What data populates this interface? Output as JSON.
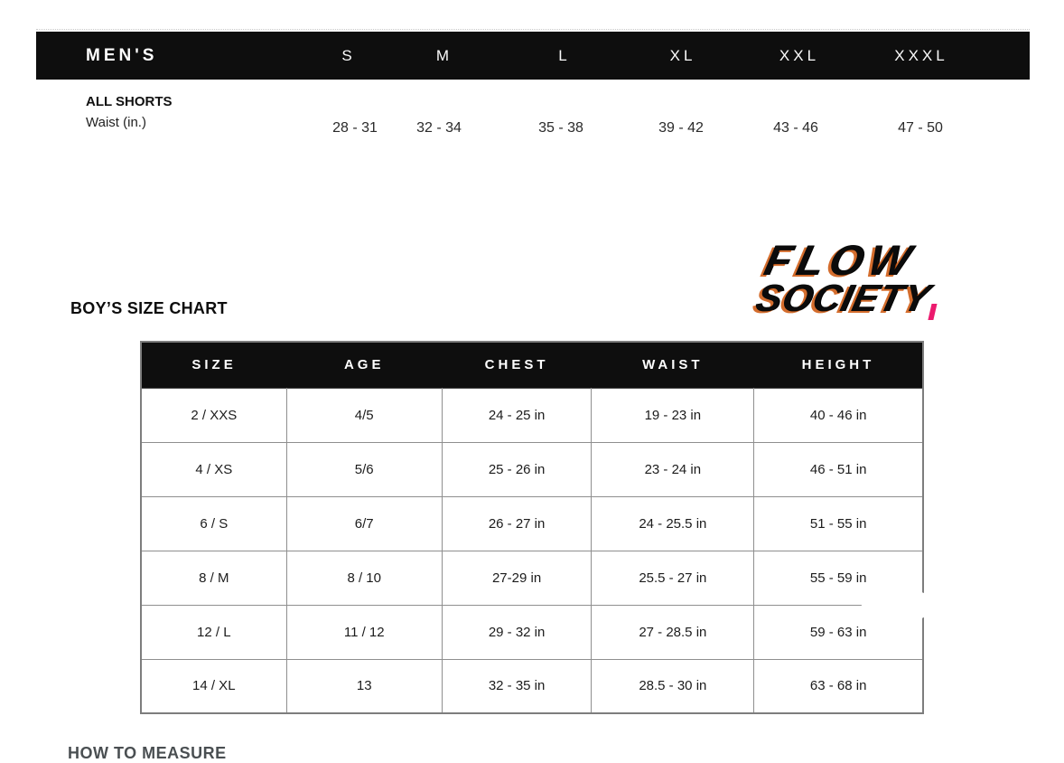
{
  "mens_bar": {
    "title": "MEN'S",
    "sizes": [
      "S",
      "M",
      "L",
      "XL",
      "XXL",
      "XXXL"
    ]
  },
  "mens_shorts": {
    "label": "ALL SHORTS",
    "sublabel": "Waist (in.)",
    "values": [
      "28 - 31",
      "32 - 34",
      "35 - 38",
      "39 - 42",
      "43 - 46",
      "47 - 50"
    ]
  },
  "logo": {
    "line1": "FLOW",
    "line2": "SOCIETY"
  },
  "boys_chart": {
    "title": "BOY’S SIZE CHART",
    "columns": [
      "SIZE",
      "AGE",
      "CHEST",
      "WAIST",
      "HEIGHT"
    ],
    "rows": [
      {
        "size": "2 / XXS",
        "age": "4/5",
        "chest": "24 - 25 in",
        "waist": "19 - 23 in",
        "height": "40 - 46 in"
      },
      {
        "size": "4 / XS",
        "age": "5/6",
        "chest": "25 - 26 in",
        "waist": "23 - 24 in",
        "height": "46 - 51 in"
      },
      {
        "size": "6 / S",
        "age": "6/7",
        "chest": "26 - 27 in",
        "waist": "24 - 25.5 in",
        "height": "51 - 55 in"
      },
      {
        "size": "8 / M",
        "age": "8 / 10",
        "chest": "27-29 in",
        "waist": "25.5 - 27 in",
        "height": "55 - 59 in"
      },
      {
        "size": "12 / L",
        "age": "11 / 12",
        "chest": "29 - 32 in",
        "waist": "27 - 28.5 in",
        "height": "59 - 63 in"
      },
      {
        "size": "14 / XL",
        "age": "13",
        "chest": "32 - 35 in",
        "waist": "28.5 - 30 in",
        "height": "63 - 68 in"
      }
    ]
  },
  "footer": {
    "heading": "HOW TO MEASURE"
  },
  "colors": {
    "bar_black": "#0e0e0e",
    "border_gray": "#8f8f8f",
    "logo_orange": "#cc5408",
    "logo_pink": "#ec1a6e"
  }
}
